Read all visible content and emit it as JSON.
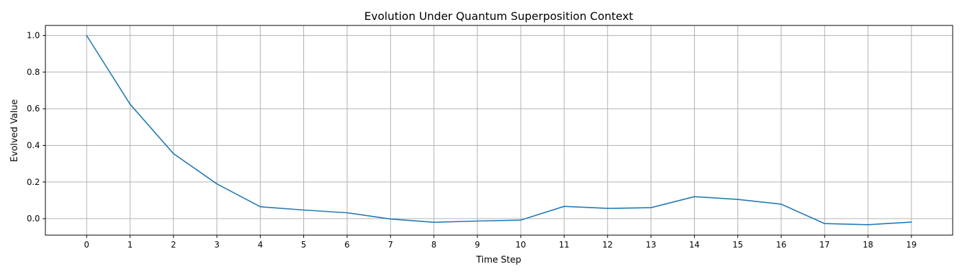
{
  "chart_data": {
    "type": "line",
    "title": "Evolution Under Quantum Superposition Context",
    "xlabel": "Time Step",
    "ylabel": "Evolved Value",
    "x": [
      0,
      1,
      2,
      3,
      4,
      5,
      6,
      7,
      8,
      9,
      10,
      11,
      12,
      13,
      14,
      15,
      16,
      17,
      18,
      19
    ],
    "series": [
      {
        "values": [
          1.0,
          0.625,
          0.355,
          0.19,
          0.065,
          0.047,
          0.032,
          -0.002,
          -0.02,
          -0.013,
          -0.008,
          0.067,
          0.056,
          0.06,
          0.12,
          0.105,
          0.079,
          -0.027,
          -0.033,
          -0.019
        ],
        "color": "#1f77b4"
      }
    ],
    "xticks": [
      0,
      1,
      2,
      3,
      4,
      5,
      6,
      7,
      8,
      9,
      10,
      11,
      12,
      13,
      14,
      15,
      16,
      17,
      18,
      19
    ],
    "yticks": [
      0.0,
      0.2,
      0.4,
      0.6,
      0.8,
      1.0
    ],
    "xtick_labels": [
      "0",
      "1",
      "2",
      "3",
      "4",
      "5",
      "6",
      "7",
      "8",
      "9",
      "10",
      "11",
      "12",
      "13",
      "14",
      "15",
      "16",
      "17",
      "18",
      "19"
    ],
    "ytick_labels": [
      "0.0",
      "0.2",
      "0.4",
      "0.6",
      "0.8",
      "1.0"
    ],
    "xlim": [
      -0.95,
      19.95
    ],
    "ylim": [
      -0.09,
      1.055
    ],
    "grid": true
  }
}
